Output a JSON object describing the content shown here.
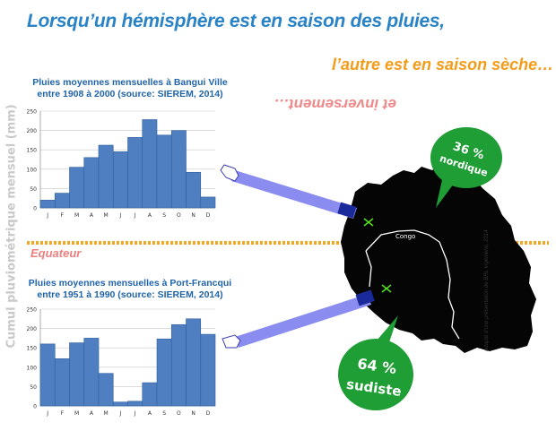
{
  "header": {
    "title": "Lorsqu’un hémisphère est en saison des pluies,",
    "subtitle": "l’autre est en saison sèche…",
    "inverse": "et inversement…"
  },
  "y_axis_label": "Cumul pluviométrique mensuel (mm)",
  "equator_label": "Equateur",
  "river_label": "Congo",
  "north_bubble": {
    "percent": "36 %",
    "word": "nordique"
  },
  "south_bubble": {
    "percent": "64 %",
    "word": "sudiste"
  },
  "credit": "adapté d'une présentation de BRL Ingénierie, 2014",
  "colors": {
    "bar": "#4f7fc0",
    "bar_stroke": "#2f5f9f",
    "bubble": "#1e9e35",
    "arrow": "#8a8cf0",
    "map": "#050505",
    "equator": "#f5a623"
  },
  "chart_data": [
    {
      "type": "bar",
      "title": "Pluies moyennes mensuelles à Bangui Ville",
      "subtitle": "entre 1908 à 2000 (source: SIEREM, 2014)",
      "categories": [
        "J",
        "F",
        "M",
        "A",
        "M",
        "J",
        "J",
        "A",
        "S",
        "O",
        "N",
        "D"
      ],
      "values": [
        20,
        38,
        105,
        130,
        162,
        145,
        182,
        228,
        188,
        200,
        92,
        28
      ],
      "ylim": [
        0,
        250
      ],
      "yticks": [
        0,
        50,
        100,
        150,
        200,
        250
      ],
      "grid": true
    },
    {
      "type": "bar",
      "title": "Pluies moyennes mensuelles à Port-Francqui",
      "subtitle": "entre 1951 à 1990 (source: SIEREM, 2014)",
      "categories": [
        "J",
        "F",
        "M",
        "A",
        "M",
        "J",
        "J",
        "A",
        "S",
        "O",
        "N",
        "D"
      ],
      "values": [
        160,
        122,
        163,
        175,
        84,
        10,
        12,
        60,
        173,
        210,
        225,
        185
      ],
      "ylim": [
        0,
        250
      ],
      "yticks": [
        0,
        50,
        100,
        150,
        200,
        250
      ],
      "grid": true
    }
  ]
}
